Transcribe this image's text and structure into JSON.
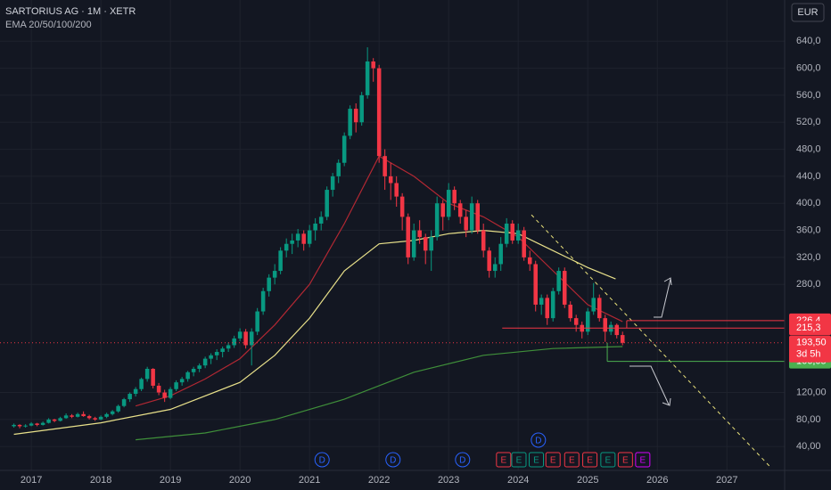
{
  "chart_data": {
    "type": "candlestick",
    "title": "SARTORIUS AG · 1M · XETR",
    "indicator": "EMA 20/50/100/200",
    "currency": "EUR",
    "up_color": "#089981",
    "down_color": "#f23645",
    "xlim": [
      2016.55,
      2027.83
    ],
    "xticks": [
      2017,
      2018,
      2019,
      2020,
      2021,
      2022,
      2023,
      2024,
      2025,
      2026,
      2027
    ],
    "ylim": [
      2,
      701
    ],
    "yticks": [
      {
        "value": 40,
        "label": "40,00"
      },
      {
        "value": 80,
        "label": "80,00"
      },
      {
        "value": 120,
        "label": "120,00"
      },
      {
        "value": 280,
        "label": "280,0"
      },
      {
        "value": 320,
        "label": "320,0"
      },
      {
        "value": 360,
        "label": "360,0"
      },
      {
        "value": 400,
        "label": "400,0"
      },
      {
        "value": 440,
        "label": "440,0"
      },
      {
        "value": 480,
        "label": "480,0"
      },
      {
        "value": 520,
        "label": "520,0"
      },
      {
        "value": 560,
        "label": "560,0"
      },
      {
        "value": 600,
        "label": "600,0"
      },
      {
        "value": 640,
        "label": "640,0"
      }
    ],
    "x": [
      2016.75,
      2016.833,
      2016.917,
      2017,
      2017.083,
      2017.167,
      2017.25,
      2017.333,
      2017.417,
      2017.5,
      2017.583,
      2017.667,
      2017.75,
      2017.833,
      2017.917,
      2018,
      2018.083,
      2018.167,
      2018.25,
      2018.333,
      2018.417,
      2018.5,
      2018.583,
      2018.667,
      2018.75,
      2018.833,
      2018.917,
      2019,
      2019.083,
      2019.167,
      2019.25,
      2019.333,
      2019.417,
      2019.5,
      2019.583,
      2019.667,
      2019.75,
      2019.833,
      2019.917,
      2020,
      2020.083,
      2020.167,
      2020.25,
      2020.333,
      2020.417,
      2020.5,
      2020.583,
      2020.667,
      2020.75,
      2020.833,
      2020.917,
      2021,
      2021.083,
      2021.167,
      2021.25,
      2021.333,
      2021.417,
      2021.5,
      2021.583,
      2021.667,
      2021.75,
      2021.833,
      2021.917,
      2022,
      2022.083,
      2022.167,
      2022.25,
      2022.333,
      2022.417,
      2022.5,
      2022.583,
      2022.667,
      2022.75,
      2022.833,
      2022.917,
      2023,
      2023.083,
      2023.167,
      2023.25,
      2023.333,
      2023.417,
      2023.5,
      2023.583,
      2023.667,
      2023.75,
      2023.833,
      2023.917,
      2024,
      2024.083,
      2024.167,
      2024.25,
      2024.333,
      2024.417,
      2024.5,
      2024.583,
      2024.667,
      2024.75,
      2024.833,
      2024.917,
      2025,
      2025.083,
      2025.167,
      2025.25,
      2025.333,
      2025.417,
      2025.5
    ],
    "ohlc": [
      [
        70,
        74,
        68,
        72
      ],
      [
        72,
        73,
        67,
        70
      ],
      [
        70,
        73,
        68,
        71
      ],
      [
        71,
        76,
        70,
        74
      ],
      [
        74,
        75,
        70,
        72
      ],
      [
        72,
        77,
        71,
        75
      ],
      [
        75,
        82,
        74,
        80
      ],
      [
        80,
        81,
        76,
        78
      ],
      [
        78,
        84,
        77,
        82
      ],
      [
        82,
        89,
        81,
        86
      ],
      [
        86,
        88,
        82,
        84
      ],
      [
        84,
        90,
        83,
        88
      ],
      [
        88,
        92,
        84,
        85
      ],
      [
        85,
        87,
        80,
        82
      ],
      [
        82,
        84,
        78,
        80
      ],
      [
        80,
        86,
        79,
        84
      ],
      [
        84,
        90,
        82,
        88
      ],
      [
        88,
        94,
        86,
        92
      ],
      [
        92,
        102,
        90,
        100
      ],
      [
        100,
        112,
        98,
        110
      ],
      [
        110,
        120,
        106,
        118
      ],
      [
        118,
        128,
        114,
        125
      ],
      [
        125,
        142,
        122,
        140
      ],
      [
        140,
        158,
        136,
        155
      ],
      [
        155,
        156,
        126,
        130
      ],
      [
        130,
        134,
        116,
        120
      ],
      [
        120,
        124,
        106,
        112
      ],
      [
        112,
        128,
        110,
        125
      ],
      [
        125,
        138,
        122,
        135
      ],
      [
        135,
        143,
        130,
        140
      ],
      [
        140,
        152,
        136,
        150
      ],
      [
        150,
        158,
        144,
        155
      ],
      [
        155,
        163,
        150,
        160
      ],
      [
        160,
        173,
        156,
        170
      ],
      [
        170,
        178,
        162,
        175
      ],
      [
        175,
        184,
        168,
        180
      ],
      [
        180,
        188,
        172,
        185
      ],
      [
        185,
        194,
        180,
        190
      ],
      [
        190,
        204,
        186,
        200
      ],
      [
        200,
        215,
        196,
        210
      ],
      [
        210,
        214,
        185,
        190
      ],
      [
        190,
        215,
        160,
        210
      ],
      [
        210,
        245,
        205,
        240
      ],
      [
        240,
        275,
        235,
        270
      ],
      [
        270,
        295,
        262,
        290
      ],
      [
        290,
        310,
        280,
        300
      ],
      [
        300,
        335,
        295,
        330
      ],
      [
        330,
        348,
        320,
        340
      ],
      [
        340,
        355,
        325,
        345
      ],
      [
        345,
        362,
        335,
        355
      ],
      [
        355,
        360,
        330,
        340
      ],
      [
        340,
        368,
        335,
        360
      ],
      [
        360,
        378,
        345,
        370
      ],
      [
        370,
        388,
        360,
        380
      ],
      [
        380,
        425,
        375,
        420
      ],
      [
        420,
        445,
        410,
        440
      ],
      [
        440,
        465,
        430,
        460
      ],
      [
        460,
        505,
        455,
        500
      ],
      [
        500,
        545,
        495,
        540
      ],
      [
        540,
        548,
        505,
        520
      ],
      [
        520,
        565,
        515,
        560
      ],
      [
        560,
        631,
        555,
        610
      ],
      [
        610,
        615,
        580,
        600
      ],
      [
        600,
        605,
        460,
        470
      ],
      [
        470,
        480,
        420,
        440
      ],
      [
        440,
        460,
        405,
        430
      ],
      [
        430,
        440,
        395,
        410
      ],
      [
        410,
        415,
        360,
        380
      ],
      [
        380,
        385,
        310,
        320
      ],
      [
        320,
        370,
        315,
        360
      ],
      [
        360,
        375,
        340,
        350
      ],
      [
        350,
        355,
        310,
        330
      ],
      [
        330,
        360,
        300,
        350
      ],
      [
        350,
        410,
        345,
        400
      ],
      [
        400,
        405,
        360,
        380
      ],
      [
        380,
        430,
        375,
        420
      ],
      [
        420,
        425,
        390,
        400
      ],
      [
        400,
        405,
        370,
        380
      ],
      [
        380,
        390,
        350,
        360
      ],
      [
        360,
        410,
        355,
        400
      ],
      [
        400,
        405,
        355,
        360
      ],
      [
        360,
        370,
        320,
        330
      ],
      [
        330,
        335,
        290,
        300
      ],
      [
        300,
        320,
        290,
        310
      ],
      [
        310,
        350,
        300,
        340
      ],
      [
        340,
        378,
        335,
        370
      ],
      [
        370,
        375,
        340,
        345
      ],
      [
        345,
        370,
        340,
        360
      ],
      [
        360,
        365,
        315,
        320
      ],
      [
        320,
        330,
        300,
        310
      ],
      [
        310,
        315,
        240,
        250
      ],
      [
        250,
        265,
        235,
        260
      ],
      [
        260,
        265,
        220,
        230
      ],
      [
        230,
        275,
        225,
        270
      ],
      [
        270,
        305,
        265,
        300
      ],
      [
        300,
        305,
        245,
        250
      ],
      [
        250,
        255,
        225,
        230
      ],
      [
        230,
        235,
        210,
        220
      ],
      [
        220,
        225,
        200,
        210
      ],
      [
        210,
        245,
        205,
        240
      ],
      [
        240,
        282,
        235,
        260
      ],
      [
        260,
        265,
        225,
        230
      ],
      [
        230,
        235,
        195,
        210
      ],
      [
        210,
        225,
        205,
        220
      ],
      [
        220,
        222,
        200,
        205
      ],
      [
        205,
        210,
        190,
        193.5
      ]
    ],
    "ema": [
      {
        "color": "#b22833",
        "x": [
          2018.5,
          2019,
          2019.5,
          2020,
          2020.5,
          2021,
          2021.5,
          2022,
          2022.5,
          2023,
          2023.5,
          2024,
          2024.5,
          2025,
          2025.5
        ],
        "values": [
          100,
          115,
          140,
          170,
          220,
          280,
          370,
          470,
          440,
          400,
          380,
          350,
          300,
          250,
          225
        ]
      },
      {
        "color": "#e8e08a",
        "x": [
          2016.75,
          2018,
          2019,
          2020,
          2020.5,
          2021,
          2021.5,
          2022,
          2022.5,
          2023,
          2023.5,
          2024,
          2024.5,
          2025,
          2025.4
        ],
        "values": [
          58,
          75,
          95,
          135,
          175,
          230,
          300,
          340,
          345,
          355,
          360,
          355,
          330,
          305,
          288
        ]
      },
      {
        "color": "#3f8f3a",
        "x": [
          2018.5,
          2019.5,
          2020.5,
          2021.5,
          2022.5,
          2023.5,
          2024.5,
          2025.5
        ],
        "values": [
          50,
          60,
          80,
          110,
          150,
          175,
          185,
          188
        ]
      }
    ],
    "trendline": {
      "color": "#e8e07a",
      "x": [
        2024.19,
        2027.64
      ],
      "values": [
        383,
        8
      ]
    },
    "levels": [
      {
        "value": 226.4,
        "label": "226,4",
        "color": "#f23645",
        "start": 2025.56
      },
      {
        "value": 215.3,
        "label": "215,3",
        "color": "#f23645",
        "start": 2023.77
      },
      {
        "value": 166.05,
        "label": "166,05",
        "color": "#4caf50",
        "start": 2025.28
      }
    ],
    "last_price": {
      "value": 193.5,
      "label": "193,50",
      "countdown": "3d 5h",
      "color": "#f23645"
    },
    "events": [
      {
        "x": 2021.18,
        "label": "D",
        "color": "#2962ff",
        "row": 0
      },
      {
        "x": 2022.2,
        "label": "D",
        "color": "#2962ff",
        "row": 0
      },
      {
        "x": 2023.2,
        "label": "D",
        "color": "#2962ff",
        "row": 0
      },
      {
        "x": 2024.29,
        "label": "D",
        "color": "#2962ff",
        "row": 1
      },
      {
        "x": 2023.79,
        "label": "E",
        "color": "#f23645",
        "row": 0
      },
      {
        "x": 2024.01,
        "label": "E",
        "color": "#089981",
        "row": 0
      },
      {
        "x": 2024.26,
        "label": "E",
        "color": "#089981",
        "row": 0
      },
      {
        "x": 2024.5,
        "label": "E",
        "color": "#f23645",
        "row": 0
      },
      {
        "x": 2024.77,
        "label": "E",
        "color": "#f23645",
        "row": 0
      },
      {
        "x": 2025.03,
        "label": "E",
        "color": "#f23645",
        "row": 0
      },
      {
        "x": 2025.29,
        "label": "E",
        "color": "#089981",
        "row": 0
      },
      {
        "x": 2025.54,
        "label": "E",
        "color": "#f23645",
        "row": 0
      },
      {
        "x": 2025.79,
        "label": "E",
        "color": "#d500f9",
        "row": 0
      }
    ]
  }
}
